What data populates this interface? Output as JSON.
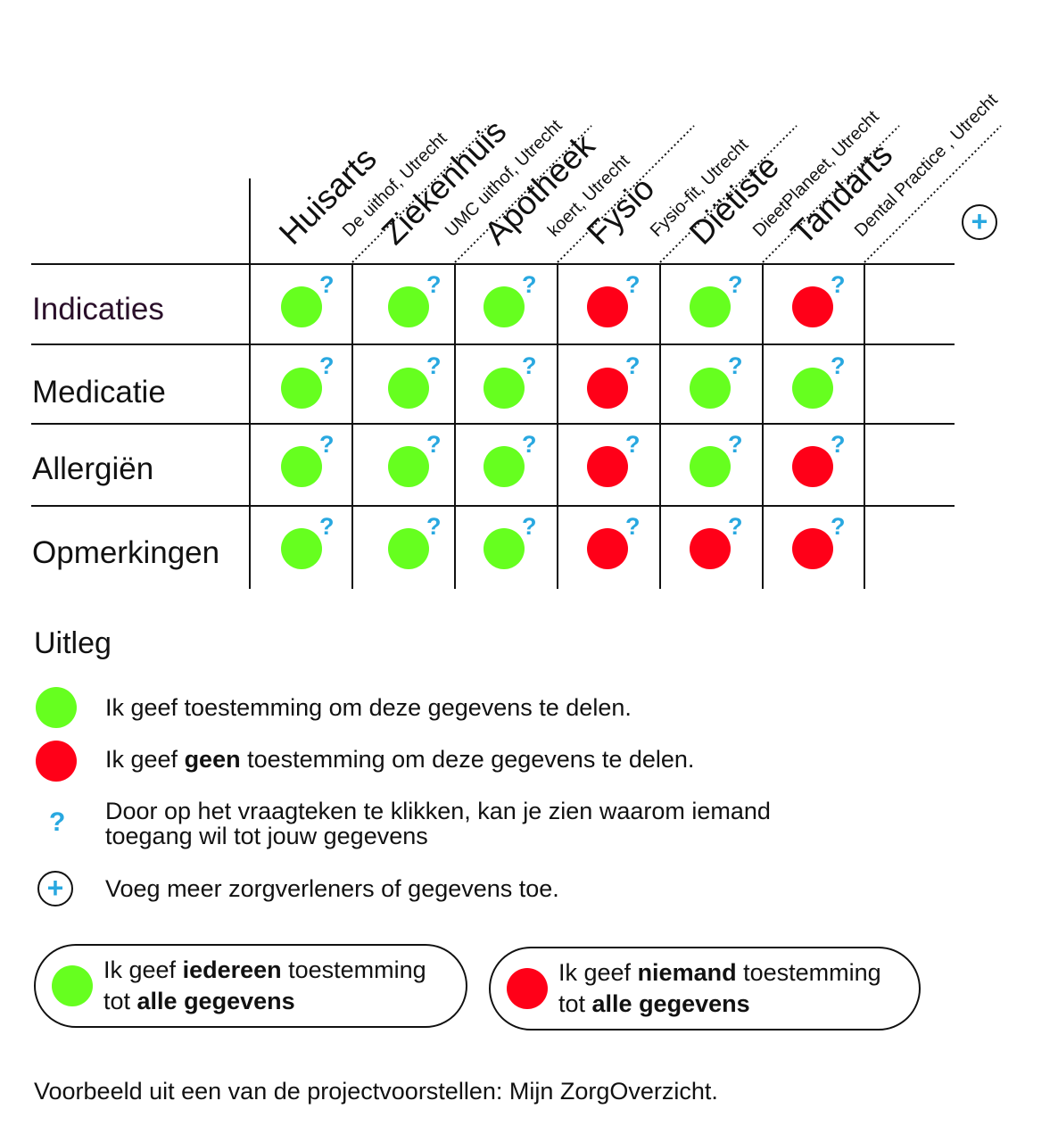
{
  "colors": {
    "green": "#66ff1f",
    "red": "#ff0018",
    "question": "#29a8e0",
    "line": "#111111"
  },
  "columns": [
    {
      "name": "Huisarts",
      "sub": "De uithof, Utrecht"
    },
    {
      "name": "Ziekenhuis",
      "sub": "UMC uithof, Utrecht"
    },
    {
      "name": "Apotheek",
      "sub": "koert, Utrecht"
    },
    {
      "name": "Fysio",
      "sub": "Fysio-fit, Utrecht"
    },
    {
      "name": "Diëtiste",
      "sub": "DieetPlaneet, Utrecht"
    },
    {
      "name": "Tandarts",
      "sub": "Dental Practice , Utrecht"
    }
  ],
  "rows": [
    {
      "label": "Indicaties",
      "status": [
        "green",
        "green",
        "green",
        "red",
        "green",
        "red"
      ]
    },
    {
      "label": "Medicatie",
      "status": [
        "green",
        "green",
        "green",
        "red",
        "green",
        "green"
      ]
    },
    {
      "label": "Allergiën",
      "status": [
        "green",
        "green",
        "green",
        "red",
        "green",
        "red"
      ]
    },
    {
      "label": "Opmerkingen",
      "status": [
        "green",
        "green",
        "green",
        "red",
        "red",
        "red"
      ]
    }
  ],
  "question_mark": "?",
  "add_icon": "+",
  "legend": {
    "title": "Uitleg",
    "green_text": "Ik geef toestemming om deze gegevens te delen.",
    "red_pre": "Ik geef ",
    "red_bold": "geen",
    "red_post": " toestemming om deze gegevens te delen.",
    "question_line1": "Door op het vraagteken te klikken, kan je zien waarom iemand",
    "question_line2": "toegang wil tot jouw gegevens",
    "plus_text": "Voeg meer zorgverleners of gegevens toe."
  },
  "buttons": {
    "all_yes": {
      "pre": "Ik geef ",
      "bold1": "iedereen",
      "mid": " toestemming",
      "line2_pre": "tot ",
      "bold2": "alle gegevens"
    },
    "all_no": {
      "pre": "Ik geef ",
      "bold1": "niemand",
      "mid": " toestemming",
      "line2_pre": "tot ",
      "bold2": "alle gegevens"
    }
  },
  "footer": "Voorbeeld uit een van de projectvoorstellen: Mijn ZorgOverzicht."
}
